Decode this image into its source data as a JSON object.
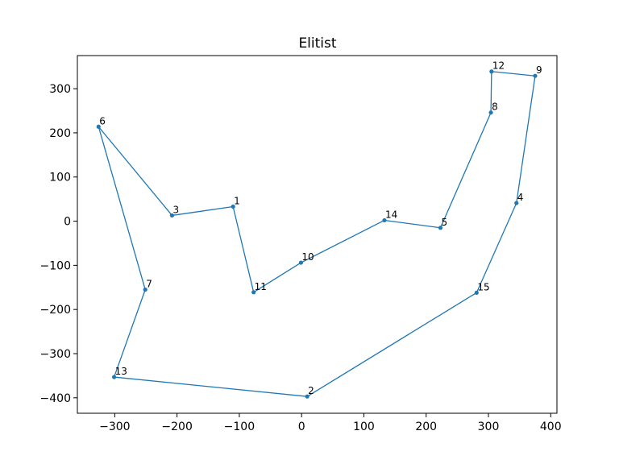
{
  "chart_data": {
    "type": "line",
    "title": "Elitist",
    "xlabel": "",
    "ylabel": "",
    "xlim": [
      -360,
      410
    ],
    "ylim": [
      -435,
      375
    ],
    "xticks": [
      -300,
      -200,
      -100,
      0,
      100,
      200,
      300,
      400
    ],
    "yticks": [
      -400,
      -300,
      -200,
      -100,
      0,
      100,
      200,
      300
    ],
    "grid": false,
    "legend": "none",
    "series": [
      {
        "color": "#1f77b4",
        "marker": "circle",
        "route": [
          2,
          15,
          4,
          9,
          12,
          8,
          5,
          14,
          10,
          11,
          1,
          3,
          6,
          7,
          13,
          2
        ],
        "points": [
          {
            "label": "1",
            "x": -110,
            "y": 33
          },
          {
            "label": "2",
            "x": 9,
            "y": -397
          },
          {
            "label": "3",
            "x": -208,
            "y": 13
          },
          {
            "label": "4",
            "x": 345,
            "y": 41
          },
          {
            "label": "5",
            "x": 223,
            "y": -15
          },
          {
            "label": "6",
            "x": -326,
            "y": 214
          },
          {
            "label": "7",
            "x": -251,
            "y": -155
          },
          {
            "label": "8",
            "x": 304,
            "y": 246
          },
          {
            "label": "9",
            "x": 375,
            "y": 329
          },
          {
            "label": "10",
            "x": -1,
            "y": -94
          },
          {
            "label": "11",
            "x": -77,
            "y": -161
          },
          {
            "label": "12",
            "x": 305,
            "y": 339
          },
          {
            "label": "13",
            "x": -301,
            "y": -353
          },
          {
            "label": "14",
            "x": 133,
            "y": 2
          },
          {
            "label": "15",
            "x": 281,
            "y": -162
          }
        ]
      }
    ]
  }
}
